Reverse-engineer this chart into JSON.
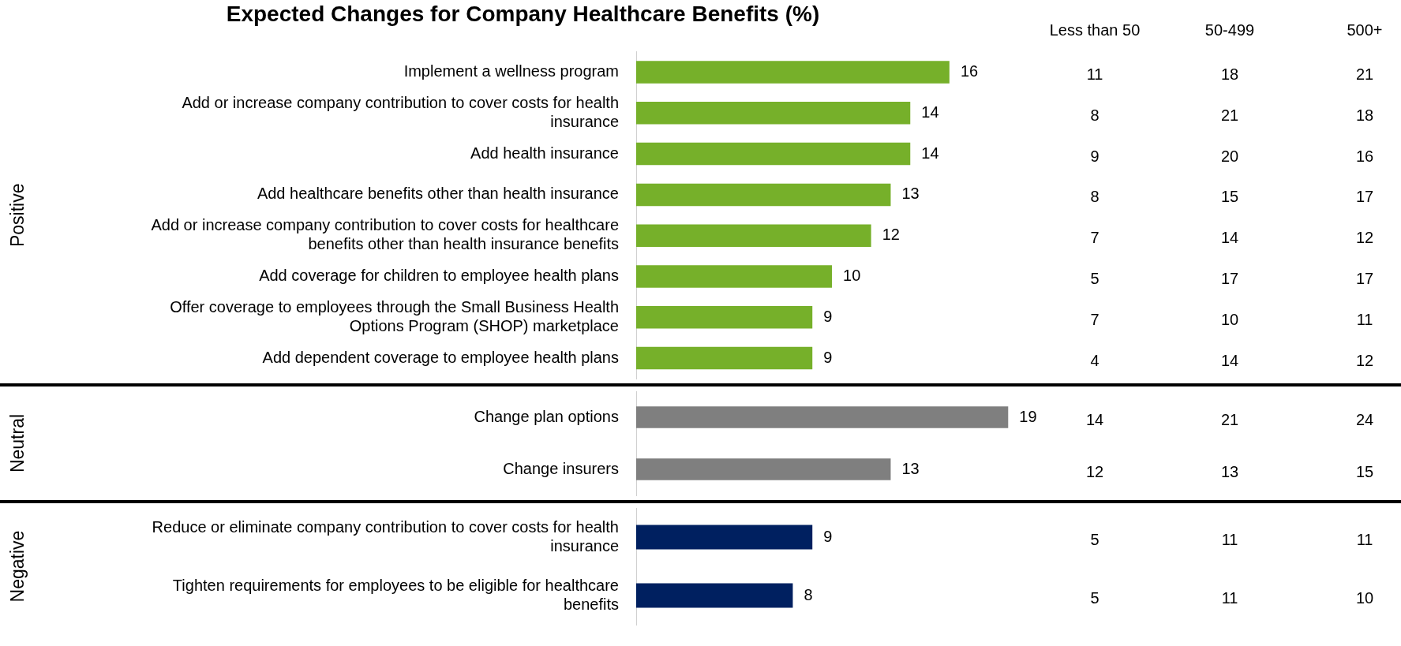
{
  "chart_data": [
    {
      "type": "bar",
      "orientation": "horizontal",
      "title": "Expected Changes for Company Healthcare Benefits (%)",
      "ylabel": "Positive",
      "data_labels": true,
      "categories": [
        "Implement a wellness program",
        "Add or increase company contribution to cover costs for health insurance",
        "Add health insurance",
        "Add healthcare benefits other than health insurance",
        "Add or increase company contribution to cover costs for healthcare benefits other than health insurance benefits",
        "Add coverage for children to employee health plans",
        "Offer coverage to employees through the Small Business Health Options Program (SHOP) marketplace",
        "Add dependent coverage to employee health plans"
      ],
      "series": [
        {
          "color": "#76b02a",
          "values": [
            16,
            14,
            14,
            13,
            12,
            10,
            9,
            9
          ]
        }
      ]
    },
    {
      "type": "other",
      "annotations": [
        "Less than 50",
        "50-499",
        "500+",
        "11",
        "18",
        "21",
        "8",
        "21",
        "18",
        "9",
        "20",
        "16",
        "8",
        "15",
        "17",
        "7",
        "14",
        "12",
        "5",
        "17",
        "17",
        "7",
        "10",
        "11",
        "4",
        "14",
        "12"
      ]
    },
    {
      "type": "bar",
      "orientation": "horizontal",
      "ylabel": "Neutral",
      "data_labels": true,
      "categories": [
        "Change plan options",
        "Change insurers"
      ],
      "series": [
        {
          "color": "#7f7f7f",
          "values": [
            19,
            13
          ]
        }
      ]
    },
    {
      "type": "other",
      "annotations": [
        "14",
        "21",
        "24",
        "12",
        "13",
        "15"
      ]
    },
    {
      "type": "bar",
      "orientation": "horizontal",
      "ylabel": "Negative",
      "data_labels": true,
      "categories": [
        "Reduce or eliminate company contribution to cover costs for health insurance",
        "Tighten requirements for employees to be eligible for healthcare benefits"
      ],
      "series": [
        {
          "color": "#002060",
          "values": [
            9,
            8
          ]
        }
      ]
    },
    {
      "type": "other",
      "annotations": [
        "5",
        "11",
        "11",
        "5",
        "11",
        "10"
      ]
    }
  ]
}
